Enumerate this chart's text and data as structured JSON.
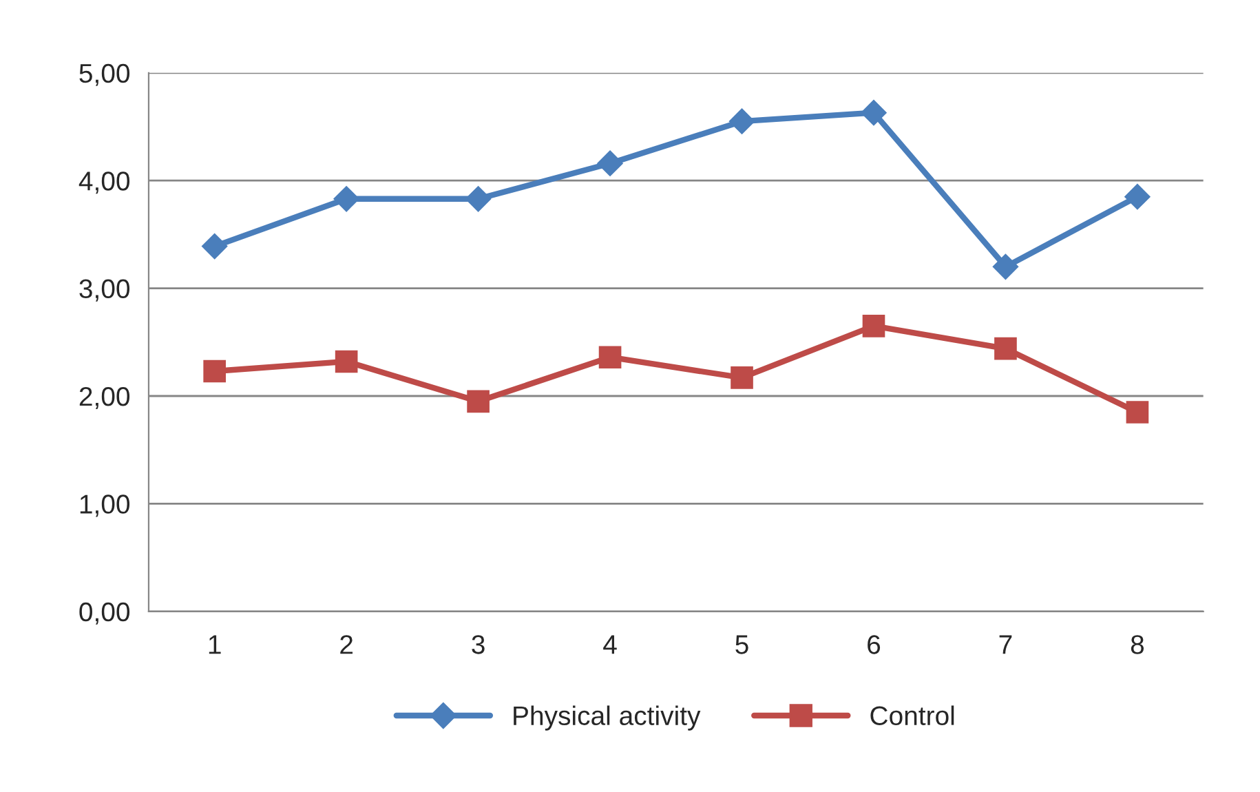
{
  "chart_data": {
    "type": "line",
    "categories": [
      "1",
      "2",
      "3",
      "4",
      "5",
      "6",
      "7",
      "8"
    ],
    "series": [
      {
        "name": "Physical activity",
        "color": "#4a7ebb",
        "marker": "diamond",
        "values": [
          3.39,
          3.83,
          3.83,
          4.16,
          4.55,
          4.63,
          3.2,
          3.85
        ]
      },
      {
        "name": "Control",
        "color": "#be4b48",
        "marker": "square",
        "values": [
          2.23,
          2.32,
          1.95,
          2.36,
          2.17,
          2.65,
          2.44,
          1.85
        ]
      }
    ],
    "ylim": [
      0,
      5
    ],
    "yticks": [
      {
        "value": 0,
        "label": "0,00"
      },
      {
        "value": 1,
        "label": "1,00"
      },
      {
        "value": 2,
        "label": "2,00"
      },
      {
        "value": 3,
        "label": "3,00"
      },
      {
        "value": 4,
        "label": "4,00"
      },
      {
        "value": 5,
        "label": "5,00"
      }
    ],
    "grid": "y",
    "legend": "bottom",
    "line_style": "solid"
  }
}
